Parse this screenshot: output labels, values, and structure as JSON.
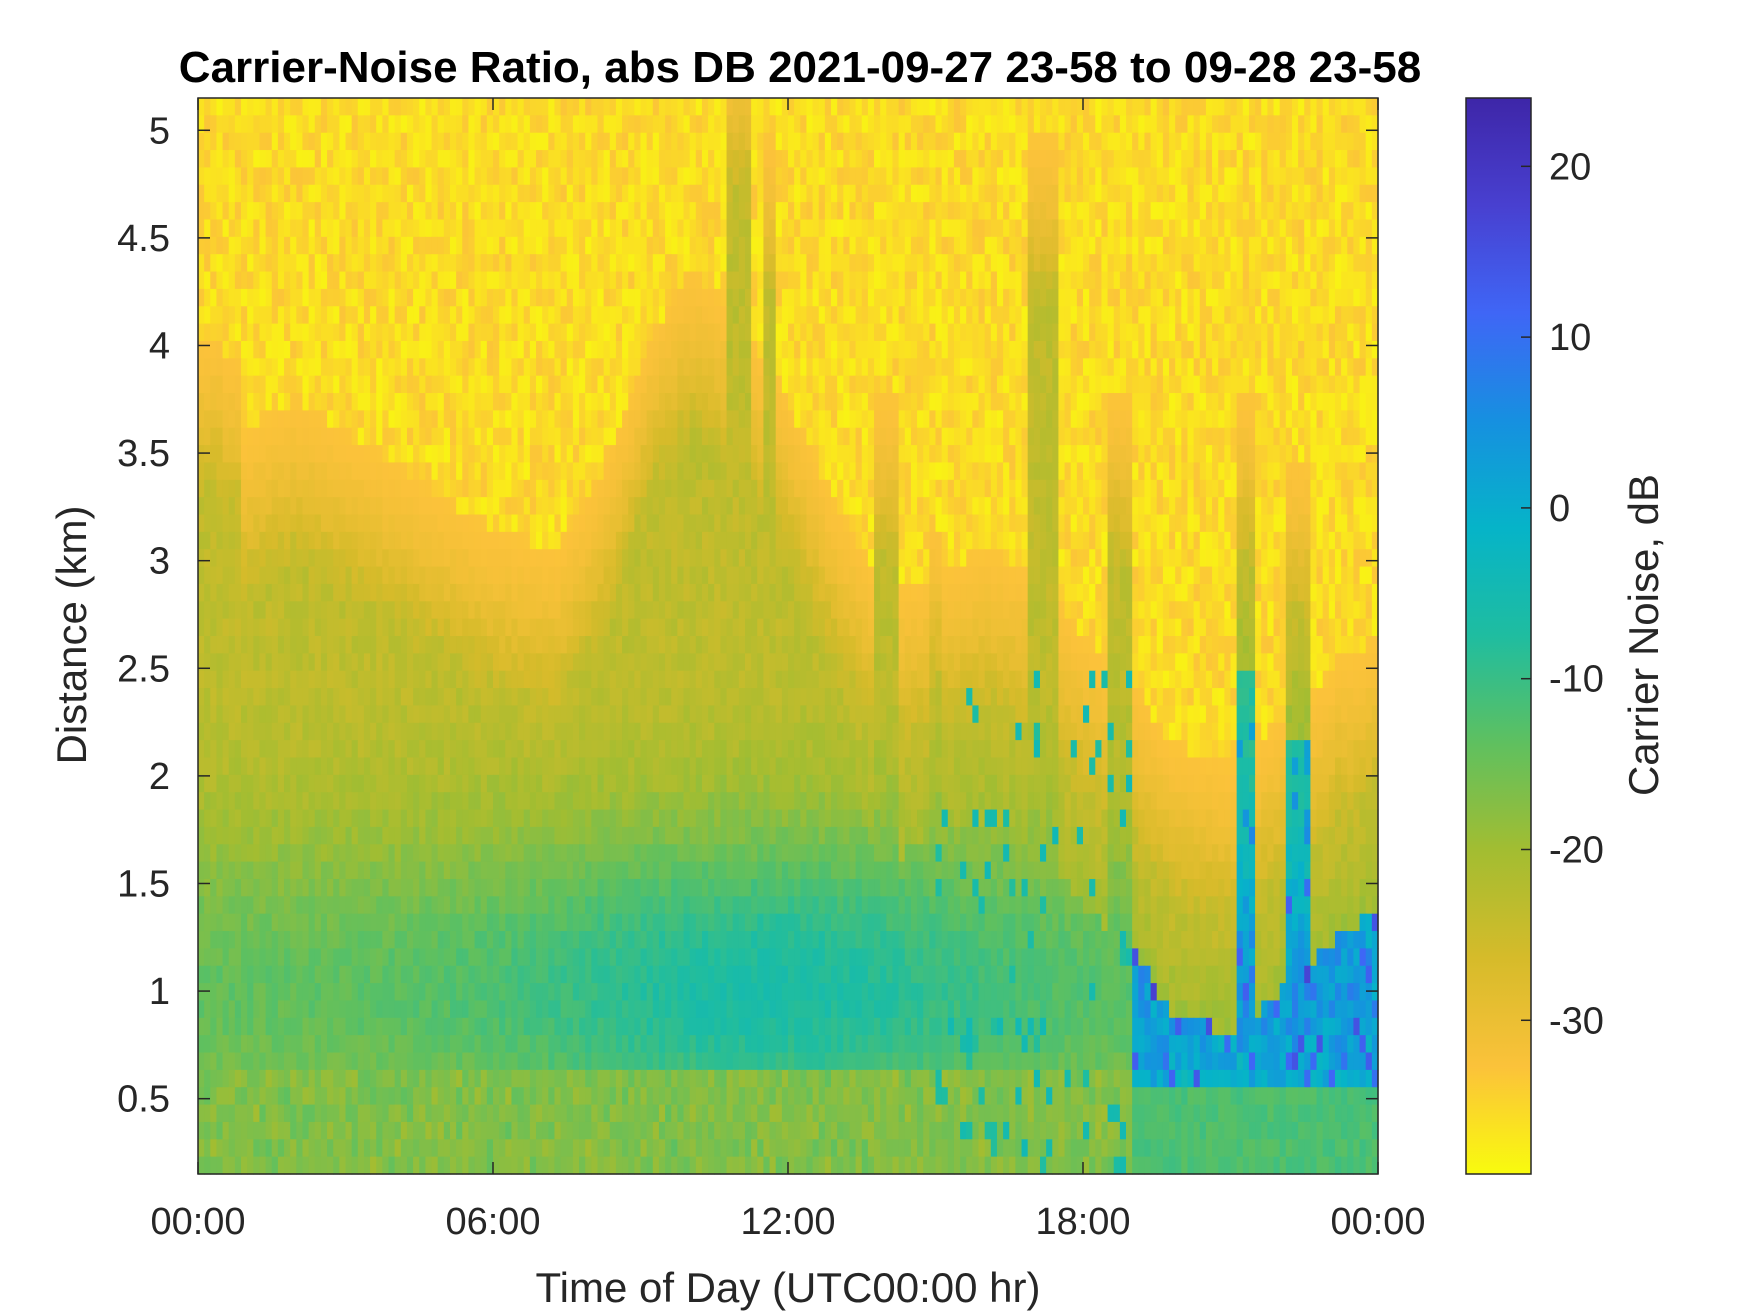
{
  "chart_data": {
    "type": "heatmap",
    "title": "Carrier-Noise Ratio, abs DB 2021-09-27 23-58 to 09-28 23-58",
    "xlabel": "Time of Day (UTC00:00 hr)",
    "ylabel": "Distance (km)",
    "colorbar_label": "Carrier Noise, dB",
    "xlim": [
      0,
      24
    ],
    "ylim": [
      0.15,
      5.15
    ],
    "clim": [
      -39,
      24
    ],
    "x_ticks": [
      0,
      6,
      12,
      18,
      24
    ],
    "x_tick_labels": [
      "00:00",
      "06:00",
      "12:00",
      "18:00",
      "00:00"
    ],
    "y_ticks": [
      0.5,
      1,
      1.5,
      2,
      2.5,
      3,
      3.5,
      4,
      4.5,
      5
    ],
    "y_tick_labels": [
      "0.5",
      "1",
      "1.5",
      "2",
      "2.5",
      "3",
      "3.5",
      "4",
      "4.5",
      "5"
    ],
    "colorbar_ticks": [
      -30,
      -20,
      -10,
      0,
      10,
      20
    ],
    "colorbar_tick_labels": [
      "-30",
      "-20",
      "-10",
      "0",
      "10",
      "20"
    ],
    "colormap": "parula",
    "colormap_stops": [
      "#f9fb0e",
      "#fbc23a",
      "#d6bb2a",
      "#a3bd31",
      "#5fc05f",
      "#1fbda0",
      "#06b4c8",
      "#1690e0",
      "#3f66f6",
      "#4840d0",
      "#3e26a8"
    ],
    "grid": false,
    "summary_regions": [
      {
        "time_range": [
          0,
          24
        ],
        "distance_range": [
          3.5,
          5.15
        ],
        "carrier_noise_db": -34
      },
      {
        "time_range": [
          0,
          8
        ],
        "distance_range": [
          0.5,
          3.0
        ],
        "carrier_noise_db": -12
      },
      {
        "time_range": [
          7,
          14
        ],
        "distance_range": [
          0.7,
          1.5
        ],
        "carrier_noise_db": -5
      },
      {
        "time_range": [
          19,
          24
        ],
        "distance_range": [
          0.5,
          2.0
        ],
        "carrier_noise_db": 5
      }
    ]
  }
}
